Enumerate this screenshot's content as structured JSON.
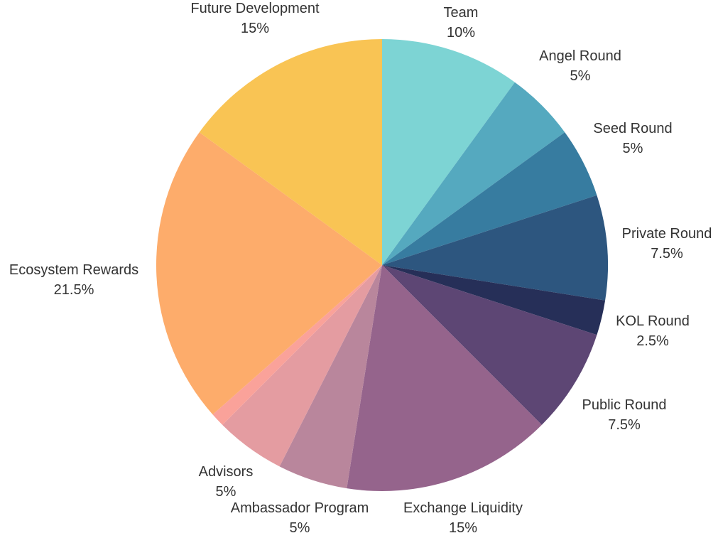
{
  "chart_data": {
    "type": "pie",
    "title": "",
    "slices": [
      {
        "label": "Team",
        "value": 10,
        "value_label": "10%",
        "color": "#7dd4d4"
      },
      {
        "label": "Angel Round",
        "value": 5,
        "value_label": "5%",
        "color": "#55a9bf"
      },
      {
        "label": "Seed Round",
        "value": 5,
        "value_label": "5%",
        "color": "#377ca0"
      },
      {
        "label": "Private Round",
        "value": 7.5,
        "value_label": "7.5%",
        "color": "#2d567f"
      },
      {
        "label": "KOL Round",
        "value": 2.5,
        "value_label": "2.5%",
        "color": "#262f58"
      },
      {
        "label": "Public Round",
        "value": 7.5,
        "value_label": "7.5%",
        "color": "#5d4674"
      },
      {
        "label": "Exchange Liquidity",
        "value": 15,
        "value_label": "15%",
        "color": "#95648c"
      },
      {
        "label": "Ambassador Program",
        "value": 5,
        "value_label": "5%",
        "color": "#b9869c"
      },
      {
        "label": "Advisors",
        "value": 5,
        "value_label": "5%",
        "color": "#e49ca1"
      },
      {
        "label": "",
        "value": 1,
        "value_label": "",
        "color": "#faa29a"
      },
      {
        "label": "Ecosystem Rewards",
        "value": 21.5,
        "value_label": "21.5%",
        "color": "#fdac6b"
      },
      {
        "label": "Future Development",
        "value": 15,
        "value_label": "15%",
        "color": "#f9c454"
      }
    ],
    "legend": "none",
    "start_angle": "top, clockwise"
  }
}
